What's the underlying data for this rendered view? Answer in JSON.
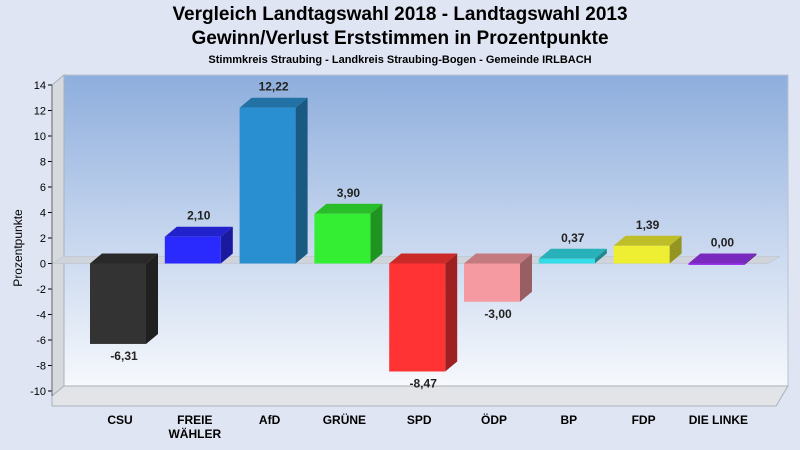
{
  "chart_data": {
    "type": "bar",
    "title": "Vergleich Landtagswahl 2018 - Landtagswahl 2013",
    "subtitle": "Gewinn/Verlust Erststimmen in Prozentpunkte",
    "subsubtitle": "Stimmkreis Straubing - Landkreis Straubing-Bogen - Gemeinde IRLBACH",
    "ylabel": "Prozentpunkte",
    "ylim": [
      -10,
      14
    ],
    "yticks": [
      14,
      12,
      10,
      8,
      6,
      4,
      2,
      0,
      -2,
      -4,
      -6,
      -8,
      -10
    ],
    "grid": false,
    "categories": [
      [
        "CSU"
      ],
      [
        "FREIE",
        "WÄHLER"
      ],
      [
        "AfD"
      ],
      [
        "GRÜNE"
      ],
      [
        "SPD"
      ],
      [
        "ÖDP"
      ],
      [
        "BP"
      ],
      [
        "FDP"
      ],
      [
        "DIE LINKE"
      ]
    ],
    "values": [
      -6.31,
      2.1,
      12.22,
      3.9,
      -8.47,
      -3.0,
      0.37,
      1.39,
      0.0
    ],
    "value_labels": [
      "-6,31",
      "2,10",
      "12,22",
      "3,90",
      "-8,47",
      "-3,00",
      "0,37",
      "1,39",
      "0,00"
    ],
    "colors": [
      "#333333",
      "#2a2aff",
      "#2a8fd0",
      "#33ee33",
      "#ff3333",
      "#f59aa0",
      "#33dde8",
      "#eeee33",
      "#9933ee"
    ]
  }
}
